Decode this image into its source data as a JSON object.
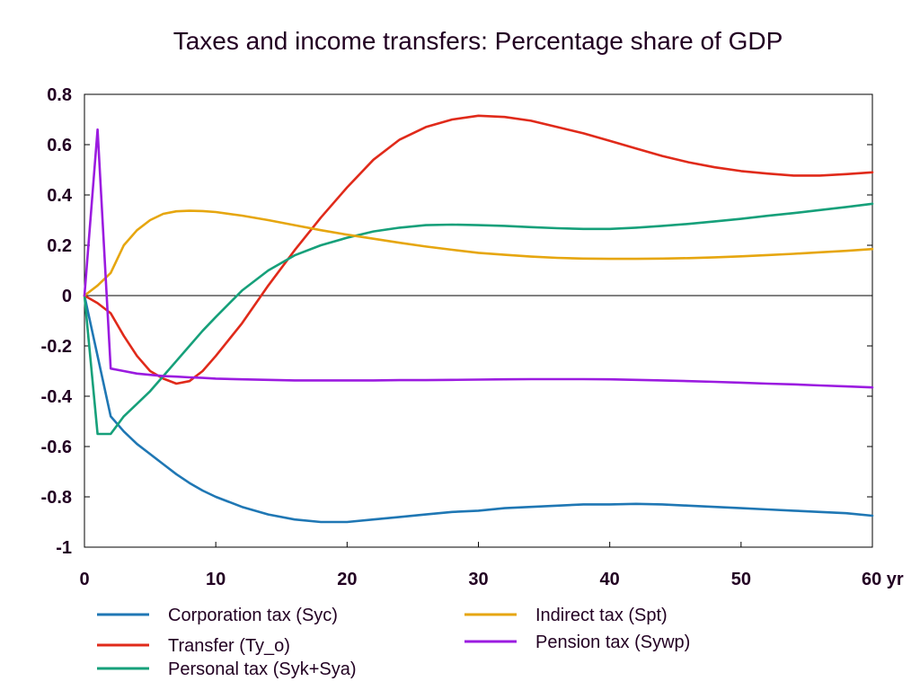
{
  "chart_data": {
    "type": "line",
    "title": "Taxes and income transfers: Percentage share of GDP",
    "xlabel": "",
    "ylabel": "",
    "xlim": [
      0,
      60
    ],
    "ylim": [
      -1,
      0.8
    ],
    "x_ticks": [
      0,
      10,
      20,
      30,
      40,
      50,
      60
    ],
    "x_tick_labels": [
      "0",
      "10",
      "20",
      "30",
      "40",
      "50",
      "60 yr"
    ],
    "y_ticks": [
      0.8,
      0.6,
      0.4,
      0.2,
      0,
      -0.2,
      -0.4,
      -0.6,
      -0.8,
      -1
    ],
    "y_tick_labels": [
      "0.8",
      "0.6",
      "0.4",
      "0.2",
      "0",
      "-0.2",
      "-0.4",
      "-0.6",
      "-0.8",
      "-1"
    ],
    "grid": false,
    "zero_line": true,
    "legend_position": "bottom",
    "series": [
      {
        "name": "Corporation tax (Syc)",
        "color": "#1f77b4",
        "x": [
          0,
          1,
          2,
          3,
          4,
          5,
          6,
          7,
          8,
          9,
          10,
          12,
          14,
          16,
          18,
          20,
          22,
          24,
          26,
          28,
          30,
          32,
          34,
          36,
          38,
          40,
          42,
          44,
          46,
          48,
          50,
          52,
          54,
          56,
          58,
          60
        ],
        "y": [
          0,
          -0.24,
          -0.48,
          -0.54,
          -0.59,
          -0.63,
          -0.67,
          -0.71,
          -0.745,
          -0.775,
          -0.8,
          -0.84,
          -0.87,
          -0.89,
          -0.9,
          -0.9,
          -0.89,
          -0.88,
          -0.87,
          -0.86,
          -0.855,
          -0.845,
          -0.84,
          -0.835,
          -0.83,
          -0.83,
          -0.828,
          -0.83,
          -0.835,
          -0.84,
          -0.845,
          -0.85,
          -0.855,
          -0.86,
          -0.865,
          -0.875
        ]
      },
      {
        "name": "Transfer (Ty_o)",
        "color": "#e02a1a",
        "x": [
          0,
          1,
          2,
          3,
          4,
          5,
          6,
          7,
          8,
          9,
          10,
          12,
          14,
          16,
          18,
          20,
          22,
          24,
          26,
          28,
          30,
          32,
          34,
          36,
          38,
          40,
          42,
          44,
          46,
          48,
          50,
          52,
          54,
          56,
          58,
          60
        ],
        "y": [
          0,
          -0.03,
          -0.07,
          -0.16,
          -0.24,
          -0.3,
          -0.33,
          -0.35,
          -0.34,
          -0.3,
          -0.24,
          -0.11,
          0.04,
          0.18,
          0.31,
          0.43,
          0.54,
          0.62,
          0.67,
          0.7,
          0.715,
          0.71,
          0.695,
          0.67,
          0.645,
          0.615,
          0.585,
          0.555,
          0.53,
          0.51,
          0.495,
          0.485,
          0.477,
          0.477,
          0.483,
          0.49
        ]
      },
      {
        "name": "Personal tax (Syk+Sya)",
        "color": "#16a07a",
        "x": [
          0,
          1,
          2,
          3,
          4,
          5,
          6,
          7,
          8,
          9,
          10,
          12,
          14,
          16,
          18,
          20,
          22,
          24,
          26,
          28,
          30,
          32,
          34,
          36,
          38,
          40,
          42,
          44,
          46,
          48,
          50,
          52,
          54,
          56,
          58,
          60
        ],
        "y": [
          0,
          -0.55,
          -0.55,
          -0.48,
          -0.43,
          -0.38,
          -0.32,
          -0.26,
          -0.2,
          -0.14,
          -0.085,
          0.02,
          0.1,
          0.16,
          0.2,
          0.23,
          0.255,
          0.27,
          0.28,
          0.282,
          0.28,
          0.277,
          0.272,
          0.268,
          0.265,
          0.265,
          0.27,
          0.277,
          0.285,
          0.295,
          0.305,
          0.317,
          0.328,
          0.34,
          0.352,
          0.365
        ]
      },
      {
        "name": "Indirect tax (Spt)",
        "color": "#e6a60f",
        "x": [
          0,
          1,
          2,
          3,
          4,
          5,
          6,
          7,
          8,
          9,
          10,
          12,
          14,
          16,
          18,
          20,
          22,
          24,
          26,
          28,
          30,
          32,
          34,
          36,
          38,
          40,
          42,
          44,
          46,
          48,
          50,
          52,
          54,
          56,
          58,
          60
        ],
        "y": [
          0,
          0.04,
          0.09,
          0.2,
          0.26,
          0.3,
          0.325,
          0.335,
          0.337,
          0.336,
          0.332,
          0.318,
          0.3,
          0.28,
          0.26,
          0.242,
          0.226,
          0.21,
          0.195,
          0.182,
          0.17,
          0.162,
          0.155,
          0.15,
          0.147,
          0.146,
          0.146,
          0.147,
          0.149,
          0.152,
          0.156,
          0.161,
          0.166,
          0.172,
          0.178,
          0.185
        ]
      },
      {
        "name": "Pension tax (Sywp)",
        "color": "#9b1be0",
        "x": [
          0,
          1,
          2,
          3,
          4,
          5,
          6,
          7,
          8,
          9,
          10,
          12,
          14,
          16,
          18,
          20,
          22,
          24,
          26,
          28,
          30,
          32,
          34,
          36,
          38,
          40,
          42,
          44,
          46,
          48,
          50,
          52,
          54,
          56,
          58,
          60
        ],
        "y": [
          0,
          0.66,
          -0.29,
          -0.3,
          -0.31,
          -0.315,
          -0.32,
          -0.322,
          -0.325,
          -0.327,
          -0.33,
          -0.333,
          -0.335,
          -0.337,
          -0.337,
          -0.337,
          -0.337,
          -0.336,
          -0.336,
          -0.335,
          -0.334,
          -0.333,
          -0.332,
          -0.332,
          -0.332,
          -0.333,
          -0.335,
          -0.337,
          -0.34,
          -0.343,
          -0.346,
          -0.35,
          -0.353,
          -0.357,
          -0.361,
          -0.365
        ]
      }
    ]
  }
}
